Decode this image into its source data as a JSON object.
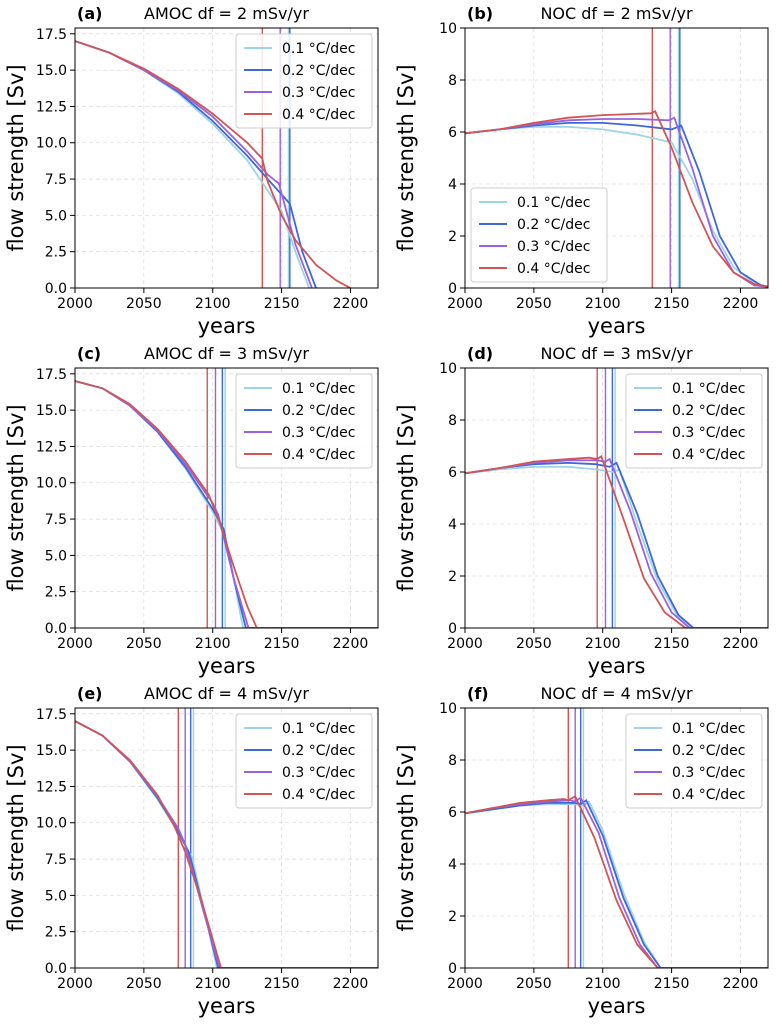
{
  "colors": {
    "0.1 °C/dec": "#9fd3e6",
    "0.2 °C/dec": "#3d68d8",
    "0.3 °C/dec": "#9a62e0",
    "0.4 °C/dec": "#d05555"
  },
  "chart_data": [
    {
      "id": "a",
      "panel_label": "(a)",
      "title": "AMOC df = 2 mSv/yr",
      "type": "line",
      "xlabel": "years",
      "ylabel": "flow strength [Sv]",
      "xlim": [
        2000,
        2220
      ],
      "ylim": [
        0,
        17.9
      ],
      "xticks": [
        "2000",
        "2050",
        "2100",
        "2150",
        "2200"
      ],
      "yticks": [
        "0.0",
        "2.5",
        "5.0",
        "7.5",
        "10.0",
        "12.5",
        "15.0",
        "17.5"
      ],
      "legend_position": "top-right",
      "grid": true,
      "series": [
        {
          "name": "0.1 °C/dec",
          "x": [
            2000,
            2025,
            2050,
            2075,
            2100,
            2125,
            2150,
            2160,
            2170
          ],
          "y": [
            17.0,
            16.2,
            15.0,
            13.4,
            11.3,
            8.8,
            5.3,
            2.5,
            0.0
          ]
        },
        {
          "name": "0.2 °C/dec",
          "x": [
            2000,
            2025,
            2050,
            2075,
            2100,
            2125,
            2140,
            2156,
            2165,
            2175
          ],
          "y": [
            17.0,
            16.2,
            15.0,
            13.5,
            11.5,
            9.1,
            7.5,
            5.8,
            2.5,
            0.0
          ]
        },
        {
          "name": "0.3 °C/dec",
          "x": [
            2000,
            2025,
            2050,
            2075,
            2100,
            2125,
            2140,
            2148,
            2160,
            2172
          ],
          "y": [
            17.0,
            16.2,
            15.0,
            13.6,
            11.8,
            9.4,
            7.8,
            7.2,
            3.0,
            0.0
          ]
        },
        {
          "name": "0.4 °C/dec",
          "x": [
            2000,
            2025,
            2050,
            2075,
            2100,
            2125,
            2136,
            2140,
            2150,
            2160,
            2175,
            2190,
            2200
          ],
          "y": [
            17.0,
            16.2,
            15.1,
            13.7,
            12.0,
            10.0,
            8.9,
            7.3,
            5.0,
            3.3,
            1.6,
            0.5,
            0.0
          ]
        }
      ],
      "markers": [
        {
          "series": "0.1 °C/dec",
          "x": 2155
        },
        {
          "series": "0.2 °C/dec",
          "x": 2156
        },
        {
          "series": "0.3 °C/dec",
          "x": 2149
        },
        {
          "series": "0.4 °C/dec",
          "x": 2136
        }
      ]
    },
    {
      "id": "b",
      "panel_label": "(b)",
      "title": "NOC df = 2 mSv/yr",
      "type": "line",
      "xlabel": "years",
      "ylabel": "flow strength [Sv]",
      "xlim": [
        2000,
        2220
      ],
      "ylim": [
        0,
        10
      ],
      "xticks": [
        "2000",
        "2050",
        "2100",
        "2150",
        "2200"
      ],
      "yticks": [
        "0",
        "2",
        "4",
        "6",
        "8",
        "10"
      ],
      "legend_position": "lower-left",
      "grid": true,
      "series": [
        {
          "name": "0.1 °C/dec",
          "x": [
            2000,
            2025,
            2050,
            2075,
            2100,
            2125,
            2150,
            2165,
            2180,
            2195,
            2210,
            2220
          ],
          "y": [
            5.95,
            6.1,
            6.2,
            6.2,
            6.1,
            5.9,
            5.6,
            4.2,
            2.2,
            0.8,
            0.2,
            0.05
          ]
        },
        {
          "name": "0.2 °C/dec",
          "x": [
            2000,
            2025,
            2050,
            2075,
            2100,
            2125,
            2150,
            2157,
            2170,
            2185,
            2200,
            2215,
            2220
          ],
          "y": [
            5.95,
            6.1,
            6.25,
            6.35,
            6.35,
            6.25,
            6.1,
            6.25,
            4.5,
            2.0,
            0.6,
            0.1,
            0.05
          ]
        },
        {
          "name": "0.3 °C/dec",
          "x": [
            2000,
            2025,
            2050,
            2075,
            2100,
            2125,
            2148,
            2152,
            2165,
            2180,
            2195,
            2210,
            2220
          ],
          "y": [
            5.95,
            6.1,
            6.3,
            6.45,
            6.5,
            6.5,
            6.45,
            6.55,
            4.6,
            2.0,
            0.6,
            0.1,
            0.05
          ]
        },
        {
          "name": "0.4 °C/dec",
          "x": [
            2000,
            2025,
            2050,
            2075,
            2100,
            2125,
            2135,
            2138,
            2150,
            2165,
            2180,
            2195,
            2210,
            2220
          ],
          "y": [
            5.95,
            6.1,
            6.35,
            6.55,
            6.65,
            6.7,
            6.72,
            6.8,
            5.4,
            3.3,
            1.6,
            0.6,
            0.15,
            0.05
          ]
        }
      ],
      "markers": [
        {
          "series": "0.1 °C/dec",
          "x": 2155
        },
        {
          "series": "0.2 °C/dec",
          "x": 2156
        },
        {
          "series": "0.3 °C/dec",
          "x": 2149
        },
        {
          "series": "0.4 °C/dec",
          "x": 2136
        }
      ]
    },
    {
      "id": "c",
      "panel_label": "(c)",
      "title": "AMOC df = 3 mSv/yr",
      "type": "line",
      "xlabel": "years",
      "ylabel": "flow strength [Sv]",
      "xlim": [
        2000,
        2220
      ],
      "ylim": [
        0,
        17.9
      ],
      "xticks": [
        "2000",
        "2050",
        "2100",
        "2150",
        "2200"
      ],
      "yticks": [
        "0.0",
        "2.5",
        "5.0",
        "7.5",
        "10.0",
        "12.5",
        "15.0",
        "17.5"
      ],
      "legend_position": "top-right",
      "grid": true,
      "series": [
        {
          "name": "0.1 °C/dec",
          "x": [
            2000,
            2020,
            2040,
            2060,
            2080,
            2100,
            2108,
            2115,
            2122,
            2220
          ],
          "y": [
            17.0,
            16.5,
            15.3,
            13.5,
            11.0,
            8.0,
            6.5,
            3.5,
            0.0,
            0.0
          ]
        },
        {
          "name": "0.2 °C/dec",
          "x": [
            2000,
            2020,
            2040,
            2060,
            2080,
            2100,
            2108,
            2115,
            2124,
            2220
          ],
          "y": [
            17.0,
            16.5,
            15.3,
            13.5,
            11.1,
            8.2,
            6.8,
            3.5,
            0.0,
            0.0
          ]
        },
        {
          "name": "0.3 °C/dec",
          "x": [
            2000,
            2020,
            2040,
            2060,
            2080,
            2100,
            2104,
            2115,
            2126,
            2220
          ],
          "y": [
            17.0,
            16.5,
            15.3,
            13.6,
            11.3,
            8.6,
            7.8,
            3.5,
            0.0,
            0.0
          ]
        },
        {
          "name": "0.4 °C/dec",
          "x": [
            2000,
            2020,
            2040,
            2060,
            2080,
            2097,
            2105,
            2115,
            2125,
            2132,
            2220
          ],
          "y": [
            17.0,
            16.5,
            15.4,
            13.7,
            11.5,
            9.2,
            7.3,
            4.3,
            1.5,
            0.0,
            0.0
          ]
        }
      ],
      "markers": [
        {
          "series": "0.1 °C/dec",
          "x": 2109
        },
        {
          "series": "0.2 °C/dec",
          "x": 2107
        },
        {
          "series": "0.3 °C/dec",
          "x": 2102
        },
        {
          "series": "0.4 °C/dec",
          "x": 2096
        }
      ]
    },
    {
      "id": "d",
      "panel_label": "(d)",
      "title": "NOC df = 3 mSv/yr",
      "type": "line",
      "xlabel": "years",
      "ylabel": "flow strength [Sv]",
      "xlim": [
        2000,
        2220
      ],
      "ylim": [
        0,
        10
      ],
      "xticks": [
        "2000",
        "2050",
        "2100",
        "2150",
        "2200"
      ],
      "yticks": [
        "0",
        "2",
        "4",
        "6",
        "8",
        "10"
      ],
      "legend_position": "top-right",
      "grid": true,
      "series": [
        {
          "name": "0.1 °C/dec",
          "x": [
            2000,
            2025,
            2050,
            2075,
            2095,
            2108,
            2112,
            2125,
            2140,
            2155,
            2165,
            2220
          ],
          "y": [
            5.95,
            6.1,
            6.2,
            6.2,
            6.1,
            6.0,
            6.1,
            4.0,
            1.8,
            0.4,
            0.0,
            0.0
          ]
        },
        {
          "name": "0.2 °C/dec",
          "x": [
            2000,
            2025,
            2050,
            2075,
            2095,
            2105,
            2110,
            2125,
            2140,
            2155,
            2166,
            2220
          ],
          "y": [
            5.95,
            6.15,
            6.3,
            6.35,
            6.3,
            6.2,
            6.35,
            4.4,
            2.0,
            0.5,
            0.0,
            0.0
          ]
        },
        {
          "name": "0.3 °C/dec",
          "x": [
            2000,
            2025,
            2050,
            2075,
            2095,
            2102,
            2105,
            2120,
            2135,
            2150,
            2163,
            2220
          ],
          "y": [
            5.95,
            6.15,
            6.35,
            6.45,
            6.45,
            6.4,
            6.5,
            4.5,
            2.1,
            0.6,
            0.0,
            0.0
          ]
        },
        {
          "name": "0.4 °C/dec",
          "x": [
            2000,
            2025,
            2050,
            2075,
            2090,
            2096,
            2099,
            2115,
            2130,
            2145,
            2160,
            2220
          ],
          "y": [
            5.95,
            6.15,
            6.4,
            6.5,
            6.55,
            6.5,
            6.6,
            4.2,
            1.9,
            0.6,
            0.0,
            0.0
          ]
        }
      ],
      "markers": [
        {
          "series": "0.1 °C/dec",
          "x": 2109
        },
        {
          "series": "0.2 °C/dec",
          "x": 2107
        },
        {
          "series": "0.3 °C/dec",
          "x": 2102
        },
        {
          "series": "0.4 °C/dec",
          "x": 2096
        }
      ]
    },
    {
      "id": "e",
      "panel_label": "(e)",
      "title": "AMOC df = 4 mSv/yr",
      "type": "line",
      "xlabel": "years",
      "ylabel": "flow strength [Sv]",
      "xlim": [
        2000,
        2220
      ],
      "ylim": [
        0,
        17.9
      ],
      "xticks": [
        "2000",
        "2050",
        "2100",
        "2150",
        "2200"
      ],
      "yticks": [
        "0.0",
        "2.5",
        "5.0",
        "7.5",
        "10.0",
        "12.5",
        "15.0",
        "17.5"
      ],
      "legend_position": "top-right",
      "grid": true,
      "series": [
        {
          "name": "0.1 °C/dec",
          "x": [
            2000,
            2020,
            2040,
            2060,
            2075,
            2085,
            2095,
            2103,
            2220
          ],
          "y": [
            17.0,
            16.0,
            14.2,
            11.6,
            9.3,
            7.6,
            3.5,
            0.0,
            0.0
          ]
        },
        {
          "name": "0.2 °C/dec",
          "x": [
            2000,
            2020,
            2040,
            2060,
            2075,
            2083,
            2094,
            2104,
            2220
          ],
          "y": [
            17.0,
            16.0,
            14.2,
            11.7,
            9.4,
            7.9,
            3.8,
            0.0,
            0.0
          ]
        },
        {
          "name": "0.3 °C/dec",
          "x": [
            2000,
            2020,
            2040,
            2060,
            2075,
            2080,
            2093,
            2105,
            2220
          ],
          "y": [
            17.0,
            16.0,
            14.2,
            11.8,
            9.6,
            8.5,
            4.0,
            0.0,
            0.0
          ]
        },
        {
          "name": "0.4 °C/dec",
          "x": [
            2000,
            2020,
            2040,
            2060,
            2072,
            2080,
            2092,
            2106,
            2220
          ],
          "y": [
            17.0,
            16.0,
            14.3,
            11.9,
            9.8,
            8.0,
            4.6,
            0.0,
            0.0
          ]
        }
      ],
      "markers": [
        {
          "series": "0.1 °C/dec",
          "x": 2086
        },
        {
          "series": "0.2 °C/dec",
          "x": 2084
        },
        {
          "series": "0.3 °C/dec",
          "x": 2080
        },
        {
          "series": "0.4 °C/dec",
          "x": 2075
        }
      ]
    },
    {
      "id": "f",
      "panel_label": "(f)",
      "title": "NOC df = 4 mSv/yr",
      "type": "line",
      "xlabel": "years",
      "ylabel": "flow strength [Sv]",
      "xlim": [
        2000,
        2220
      ],
      "ylim": [
        0,
        10
      ],
      "xticks": [
        "2000",
        "2050",
        "2100",
        "2150",
        "2200"
      ],
      "yticks": [
        "0",
        "2",
        "4",
        "6",
        "8",
        "10"
      ],
      "legend_position": "top-right",
      "grid": true,
      "series": [
        {
          "name": "0.1 °C/dec",
          "x": [
            2000,
            2020,
            2040,
            2060,
            2080,
            2086,
            2090,
            2100,
            2115,
            2130,
            2142,
            2220
          ],
          "y": [
            5.95,
            6.1,
            6.25,
            6.3,
            6.3,
            6.25,
            6.4,
            5.3,
            2.9,
            1.0,
            0.0,
            0.0
          ]
        },
        {
          "name": "0.2 °C/dec",
          "x": [
            2000,
            2020,
            2040,
            2060,
            2080,
            2084,
            2088,
            2100,
            2115,
            2130,
            2142,
            2220
          ],
          "y": [
            5.95,
            6.1,
            6.25,
            6.35,
            6.35,
            6.3,
            6.45,
            5.1,
            2.7,
            0.9,
            0.0,
            0.0
          ]
        },
        {
          "name": "0.3 °C/dec",
          "x": [
            2000,
            2020,
            2040,
            2060,
            2076,
            2080,
            2084,
            2097,
            2112,
            2127,
            2140,
            2220
          ],
          "y": [
            5.95,
            6.15,
            6.3,
            6.4,
            6.45,
            6.4,
            6.55,
            5.2,
            2.7,
            0.9,
            0.0,
            0.0
          ]
        },
        {
          "name": "0.4 °C/dec",
          "x": [
            2000,
            2020,
            2040,
            2060,
            2072,
            2075,
            2080,
            2094,
            2110,
            2125,
            2140,
            2220
          ],
          "y": [
            5.95,
            6.15,
            6.35,
            6.45,
            6.5,
            6.45,
            6.6,
            5.0,
            2.6,
            0.9,
            0.0,
            0.0
          ]
        }
      ],
      "markers": [
        {
          "series": "0.1 °C/dec",
          "x": 2086
        },
        {
          "series": "0.2 °C/dec",
          "x": 2084
        },
        {
          "series": "0.3 °C/dec",
          "x": 2080
        },
        {
          "series": "0.4 °C/dec",
          "x": 2075
        }
      ]
    }
  ]
}
